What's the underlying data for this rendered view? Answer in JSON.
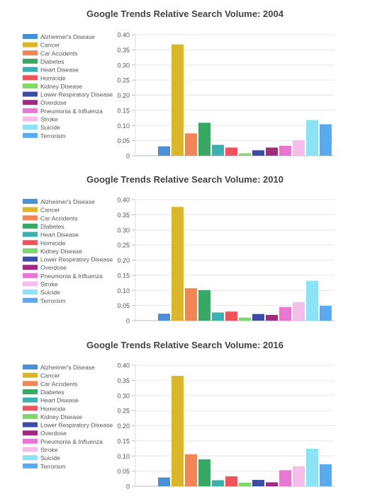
{
  "legend_labels": [
    "Alzheimer's Disease",
    "Cancer",
    "Car Accidents",
    "Diabetes",
    "Heart Disease",
    "Homicide",
    "Kidney Disease",
    "Lower Respiratory Disease",
    "Overdose",
    "Pneumonia & Influenza",
    "Stroke",
    "Suicide",
    "Terrorism"
  ],
  "colors": [
    "#4a90d9",
    "#dbb62a",
    "#f28555",
    "#3aa865",
    "#3ab0b0",
    "#f0545a",
    "#7fd66a",
    "#3d4da5",
    "#a12a80",
    "#e877d2",
    "#f7bdea",
    "#8be3f5",
    "#5aaaf0"
  ],
  "chart_data": [
    {
      "type": "bar",
      "title": "Google Trends Relative Search Volume: 2004",
      "categories": [
        "Alzheimer's Disease",
        "Cancer",
        "Car Accidents",
        "Diabetes",
        "Heart Disease",
        "Homicide",
        "Kidney Disease",
        "Lower Respiratory Disease",
        "Overdose",
        "Pneumonia & Influenza",
        "Stroke",
        "Suicide",
        "Terrorism"
      ],
      "values": [
        0.031,
        0.368,
        0.074,
        0.109,
        0.036,
        0.027,
        0.008,
        0.018,
        0.027,
        0.033,
        0.051,
        0.118,
        0.104
      ],
      "ylim": [
        0,
        0.4
      ],
      "yticks": [
        "0",
        "0.05",
        "0.10",
        "0.15",
        "0.20",
        "0.25",
        "0.30",
        "0.35",
        "0.40"
      ],
      "legend": "left",
      "grid": true
    },
    {
      "type": "bar",
      "title": "Google Trends Relative Search Volume: 2010",
      "categories": [
        "Alzheimer's Disease",
        "Cancer",
        "Car Accidents",
        "Diabetes",
        "Heart Disease",
        "Homicide",
        "Kidney Disease",
        "Lower Respiratory Disease",
        "Overdose",
        "Pneumonia & Influenza",
        "Stroke",
        "Suicide",
        "Terrorism"
      ],
      "values": [
        0.023,
        0.376,
        0.107,
        0.101,
        0.027,
        0.03,
        0.01,
        0.022,
        0.019,
        0.045,
        0.061,
        0.132,
        0.049
      ],
      "ylim": [
        0,
        0.4
      ],
      "yticks": [
        "0",
        "0.05",
        "0.10",
        "0.15",
        "0.20",
        "0.25",
        "0.30",
        "0.35",
        "0.40"
      ],
      "legend": "left",
      "grid": true
    },
    {
      "type": "bar",
      "title": "Google Trends Relative Search Volume: 2016",
      "categories": [
        "Alzheimer's Disease",
        "Cancer",
        "Car Accidents",
        "Diabetes",
        "Heart Disease",
        "Homicide",
        "Kidney Disease",
        "Lower Respiratory Disease",
        "Overdose",
        "Pneumonia & Influenza",
        "Stroke",
        "Suicide",
        "Terrorism"
      ],
      "values": [
        0.029,
        0.365,
        0.106,
        0.089,
        0.02,
        0.033,
        0.012,
        0.021,
        0.013,
        0.053,
        0.066,
        0.124,
        0.073
      ],
      "ylim": [
        0,
        0.4
      ],
      "yticks": [
        "0",
        "0.05",
        "0.10",
        "0.15",
        "0.20",
        "0.25",
        "0.30",
        "0.35",
        "0.40"
      ],
      "legend": "left",
      "grid": true
    }
  ]
}
